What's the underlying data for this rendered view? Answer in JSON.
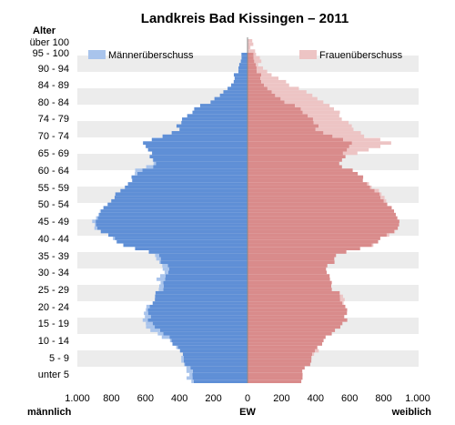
{
  "chart_data": {
    "type": "bar",
    "orientation": "horizontal-population-pyramid",
    "title": "Landkreis Bad Kissingen – 2011",
    "y_axis_label": "Alter",
    "x_axis_label_center": "EW",
    "x_axis_label_left": "männlich",
    "x_axis_label_right": "weiblich",
    "y_tick_labels": [
      "über 100",
      "95 - 100",
      "90 - 94",
      "84 - 89",
      "80 - 84",
      "74 - 79",
      "70 - 74",
      "65 - 69",
      "60 - 64",
      "55 - 59",
      "50 - 54",
      "45 - 49",
      "40 - 44",
      "35 - 39",
      "30 - 34",
      "25 - 29",
      "20 - 24",
      "15 - 19",
      "10 - 14",
      "5 - 9",
      "unter 5"
    ],
    "x_tick_labels": [
      "1.000",
      "800",
      "600",
      "400",
      "200",
      "0",
      "200",
      "400",
      "600",
      "800",
      "1.000"
    ],
    "xlim": [
      -1000,
      1000
    ],
    "ylim_age": [
      0,
      100
    ],
    "grid": "alternating horizontal bands",
    "legend": {
      "placement": "top",
      "male_excess": "Männerüberschuss",
      "female_excess": "Frauenüberschuss"
    },
    "colors": {
      "male": "#5f8fd6",
      "male_excess": "#a9c4ec",
      "female": "#d98b8b",
      "female_excess": "#edc4c4",
      "band": "#ececec"
    },
    "age_keypoints": [
      0,
      4,
      10,
      15,
      18,
      20,
      25,
      28,
      32,
      37,
      40,
      44,
      47,
      50,
      55,
      60,
      62,
      64,
      66,
      68,
      70,
      72,
      74,
      78,
      82,
      86,
      90,
      94,
      98,
      101
    ],
    "male_keypoints": [
      330,
      350,
      420,
      560,
      600,
      590,
      560,
      540,
      480,
      520,
      740,
      870,
      900,
      860,
      780,
      680,
      640,
      550,
      560,
      600,
      630,
      520,
      420,
      350,
      240,
      130,
      60,
      20,
      5,
      1
    ],
    "female_keypoints": [
      330,
      340,
      410,
      530,
      600,
      570,
      540,
      510,
      480,
      510,
      720,
      880,
      900,
      850,
      770,
      680,
      620,
      520,
      560,
      700,
      820,
      700,
      640,
      550,
      430,
      300,
      160,
      60,
      15,
      3
    ]
  }
}
